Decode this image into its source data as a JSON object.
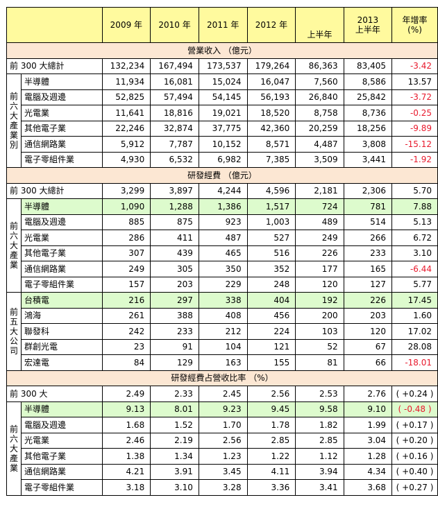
{
  "header": {
    "y2009": "2009 年",
    "y2010": "2010 年",
    "y2011": "2011 年",
    "y2012": "2012 年",
    "h1_2012": "上半年",
    "y2013": "2013",
    "h1_2013": "上半年",
    "growth_line1": "年增率",
    "growth_line2": "(%)"
  },
  "sections": [
    {
      "title": "營業收入 （億元）",
      "total": {
        "label": "前 300 大總計",
        "values": [
          "132,234",
          "167,494",
          "173,537",
          "179,264",
          "86,363",
          "83,405"
        ],
        "growth": "-3.42",
        "neg": true
      },
      "groups": [
        {
          "label": "前 六 大 產 業 別",
          "rows": [
            {
              "label": "半導體",
              "values": [
                "11,934",
                "16,081",
                "15,024",
                "16,047",
                "7,560",
                "8,586"
              ],
              "growth": "13.57",
              "neg": false
            },
            {
              "label": "電腦及週邊",
              "values": [
                "52,825",
                "57,494",
                "54,145",
                "56,193",
                "26,840",
                "25,842"
              ],
              "growth": "-3.72",
              "neg": true
            },
            {
              "label": "光電業",
              "values": [
                "11,641",
                "18,816",
                "19,021",
                "18,520",
                "8,758",
                "8,736"
              ],
              "growth": "-0.25",
              "neg": true
            },
            {
              "label": "其他電子業",
              "values": [
                "22,246",
                "32,874",
                "37,775",
                "42,360",
                "20,259",
                "18,256"
              ],
              "growth": "-9.89",
              "neg": true
            },
            {
              "label": "通信網路業",
              "values": [
                "5,912",
                "7,787",
                "10,152",
                "8,571",
                "4,487",
                "3,808"
              ],
              "growth": "-15.12",
              "neg": true
            },
            {
              "label": "電子零組件業",
              "values": [
                "4,930",
                "6,532",
                "6,982",
                "7,385",
                "3,509",
                "3,441"
              ],
              "growth": "-1.92",
              "neg": true
            }
          ]
        }
      ]
    },
    {
      "title": "研發經費 （億元）",
      "total": {
        "label": "前 300 大總計",
        "values": [
          "3,299",
          "3,897",
          "4,244",
          "4,596",
          "2,181",
          "2,306"
        ],
        "growth": "5.70",
        "neg": false
      },
      "groups": [
        {
          "label": "前 六 大 產 業",
          "rows": [
            {
              "label": "半導體",
              "values": [
                "1,090",
                "1,288",
                "1,386",
                "1,517",
                "724",
                "781"
              ],
              "growth": "7.88",
              "neg": false,
              "hl": true
            },
            {
              "label": "電腦及週邊",
              "values": [
                "885",
                "875",
                "923",
                "1,003",
                "489",
                "514"
              ],
              "growth": "5.13",
              "neg": false
            },
            {
              "label": "光電業",
              "values": [
                "286",
                "411",
                "487",
                "527",
                "249",
                "266"
              ],
              "growth": "6.72",
              "neg": false
            },
            {
              "label": "其他電子業",
              "values": [
                "307",
                "439",
                "465",
                "516",
                "226",
                "233"
              ],
              "growth": "3.10",
              "neg": false
            },
            {
              "label": "通信網路業",
              "values": [
                "249",
                "305",
                "350",
                "352",
                "177",
                "165"
              ],
              "growth": "-6.44",
              "neg": true
            },
            {
              "label": "電子零組件業",
              "values": [
                "157",
                "203",
                "229",
                "248",
                "120",
                "127"
              ],
              "growth": "5.77",
              "neg": false
            }
          ]
        },
        {
          "label": "前 五 大 公 司",
          "rows": [
            {
              "label": "台積電",
              "values": [
                "216",
                "297",
                "338",
                "404",
                "192",
                "226"
              ],
              "growth": "17.45",
              "neg": false,
              "hl": true
            },
            {
              "label": "鴻海",
              "values": [
                "261",
                "388",
                "408",
                "456",
                "200",
                "203"
              ],
              "growth": "1.60",
              "neg": false
            },
            {
              "label": "聯發科",
              "values": [
                "242",
                "233",
                "212",
                "224",
                "103",
                "120"
              ],
              "growth": "17.02",
              "neg": false
            },
            {
              "label": "群創光電",
              "values": [
                "23",
                "91",
                "104",
                "121",
                "52",
                "67"
              ],
              "growth": "28.08",
              "neg": false
            },
            {
              "label": "宏達電",
              "values": [
                "84",
                "129",
                "163",
                "155",
                "81",
                "66"
              ],
              "growth": "-18.01",
              "neg": true
            }
          ]
        }
      ]
    },
    {
      "title": "研發經費占營收比率 （%）",
      "total": {
        "label": "前 300 大",
        "values": [
          "2.49",
          "2.33",
          "2.45",
          "2.56",
          "2.53",
          "2.76"
        ],
        "growth": "( +0.24 )",
        "neg": false,
        "pct": true
      },
      "groups": [
        {
          "label": "前 六 大 產 業",
          "rows": [
            {
              "label": "半導體",
              "values": [
                "9.13",
                "8.01",
                "9.23",
                "9.45",
                "9.58",
                "9.10"
              ],
              "growth": "( -0.48 )",
              "neg": true,
              "hl": true,
              "pct": true
            },
            {
              "label": "電腦及週邊",
              "values": [
                "1.68",
                "1.52",
                "1.70",
                "1.78",
                "1.82",
                "1.99"
              ],
              "growth": "( +0.17 )",
              "neg": false,
              "pct": true
            },
            {
              "label": "光電業",
              "values": [
                "2.46",
                "2.19",
                "2.56",
                "2.85",
                "2.85",
                "3.04"
              ],
              "growth": "( +0.20 )",
              "neg": false,
              "pct": true
            },
            {
              "label": "其他電子業",
              "values": [
                "1.38",
                "1.34",
                "1.23",
                "1.22",
                "1.12",
                "1.28"
              ],
              "growth": "( +0.16 )",
              "neg": false,
              "pct": true
            },
            {
              "label": "通信網路業",
              "values": [
                "4.21",
                "3.91",
                "3.45",
                "4.11",
                "3.94",
                "4.34"
              ],
              "growth": "( +0.40 )",
              "neg": false,
              "pct": true
            },
            {
              "label": "電子零組件業",
              "values": [
                "3.18",
                "3.10",
                "3.28",
                "3.36",
                "3.41",
                "3.68"
              ],
              "growth": "( +0.27 )",
              "neg": false,
              "pct": true
            }
          ]
        }
      ]
    }
  ]
}
